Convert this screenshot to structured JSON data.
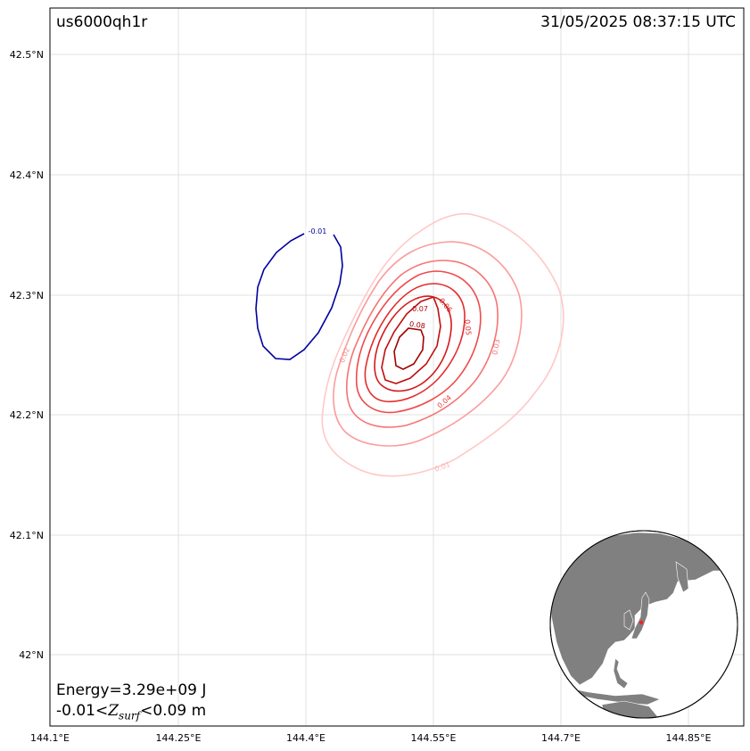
{
  "map": {
    "event_id": "us6000qh1r",
    "timestamp": "31/05/2025 08:37:15 UTC",
    "energy_text": "Energy=3.29e+09 J",
    "range_prefix": "-0.01<",
    "range_var": "Z",
    "range_sub": "surf",
    "range_suffix": "<0.09 m",
    "lat_ticks": [
      "42.5°N",
      "42.4°N",
      "42.3°N",
      "42.2°N",
      "42.1°N",
      "42°N"
    ],
    "lon_ticks": [
      "144.1°E",
      "144.25°E",
      "144.4°E",
      "144.55°E",
      "144.7°E",
      "144.85°E"
    ],
    "contour_labels": [
      "-0.01",
      "0.01",
      "0.02",
      "0.03",
      "0.04",
      "0.05",
      "0.06",
      "0.07",
      "0.08"
    ],
    "colors": {
      "negative": "#0000a0",
      "c001": "#ffc8c8",
      "c002": "#fb9c9c",
      "c003": "#f57474",
      "c004": "#ee4c4c",
      "c005": "#e32c2c",
      "c006": "#d51a1a",
      "c007": "#c00e0e",
      "c008": "#a00000",
      "land": "#808080"
    }
  }
}
